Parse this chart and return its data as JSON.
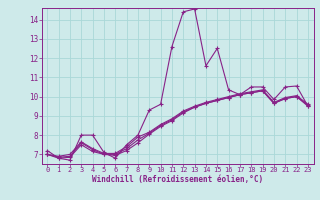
{
  "xlabel": "Windchill (Refroidissement éolien,°C)",
  "bg_color": "#ceeaea",
  "line_color": "#882288",
  "grid_color": "#aad8d8",
  "x_ticks": [
    0,
    1,
    2,
    3,
    4,
    5,
    6,
    7,
    8,
    9,
    10,
    11,
    12,
    13,
    14,
    15,
    16,
    17,
    18,
    19,
    20,
    21,
    22,
    23
  ],
  "y_ticks": [
    7,
    8,
    9,
    10,
    11,
    12,
    13,
    14
  ],
  "ylim": [
    6.5,
    14.6
  ],
  "xlim": [
    -0.5,
    23.5
  ],
  "series": [
    [
      7.2,
      6.8,
      6.7,
      8.0,
      8.0,
      7.1,
      6.8,
      7.5,
      8.0,
      9.3,
      9.6,
      12.6,
      14.4,
      14.55,
      11.6,
      12.5,
      10.35,
      10.1,
      10.5,
      10.5,
      9.85,
      10.5,
      10.55,
      9.5
    ],
    [
      7.0,
      6.8,
      6.85,
      7.5,
      7.15,
      7.0,
      6.95,
      7.2,
      7.6,
      8.05,
      8.45,
      8.75,
      9.15,
      9.45,
      9.65,
      9.8,
      9.95,
      10.1,
      10.2,
      10.3,
      9.65,
      9.9,
      10.0,
      9.5
    ],
    [
      7.0,
      6.85,
      6.9,
      7.6,
      7.25,
      7.0,
      7.0,
      7.3,
      7.75,
      8.1,
      8.5,
      8.8,
      9.2,
      9.45,
      9.65,
      9.8,
      9.95,
      10.1,
      10.2,
      10.3,
      9.65,
      9.9,
      10.0,
      9.55
    ],
    [
      7.0,
      6.9,
      7.0,
      7.65,
      7.3,
      7.05,
      7.05,
      7.4,
      7.9,
      8.15,
      8.55,
      8.85,
      9.25,
      9.5,
      9.7,
      9.85,
      10.0,
      10.15,
      10.25,
      10.35,
      9.7,
      9.95,
      10.05,
      9.6
    ]
  ]
}
